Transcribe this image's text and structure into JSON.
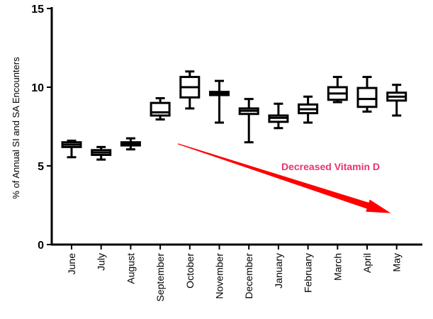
{
  "chart_data": {
    "type": "box",
    "title": "",
    "xlabel": "",
    "ylabel": "% of Annual SI and SA Encounters",
    "ylim": [
      0,
      15
    ],
    "yticks": [
      0,
      5,
      10,
      15
    ],
    "categories": [
      "June",
      "July",
      "August",
      "September",
      "October",
      "November",
      "December",
      "January",
      "February",
      "March",
      "April",
      "May"
    ],
    "boxes": [
      {
        "label": "June",
        "min": 5.55,
        "q1": 6.2,
        "median": 6.35,
        "q3": 6.5,
        "max": 6.6
      },
      {
        "label": "July",
        "min": 5.4,
        "q1": 5.7,
        "median": 5.85,
        "q3": 6.0,
        "max": 6.2
      },
      {
        "label": "August",
        "min": 6.05,
        "q1": 6.3,
        "median": 6.4,
        "q3": 6.5,
        "max": 6.75
      },
      {
        "label": "September",
        "min": 7.95,
        "q1": 8.2,
        "median": 8.4,
        "q3": 9.0,
        "max": 9.3
      },
      {
        "label": "October",
        "min": 8.65,
        "q1": 9.35,
        "median": 10.0,
        "q3": 10.65,
        "max": 11.0
      },
      {
        "label": "November",
        "min": 7.75,
        "q1": 9.5,
        "median": 9.6,
        "q3": 9.7,
        "max": 10.4
      },
      {
        "label": "December",
        "min": 6.5,
        "q1": 8.3,
        "median": 8.5,
        "q3": 8.65,
        "max": 9.25
      },
      {
        "label": "January",
        "min": 7.4,
        "q1": 7.8,
        "median": 8.05,
        "q3": 8.2,
        "max": 8.95
      },
      {
        "label": "February",
        "min": 7.75,
        "q1": 8.35,
        "median": 8.6,
        "q3": 8.9,
        "max": 9.4
      },
      {
        "label": "March",
        "min": 9.05,
        "q1": 9.2,
        "median": 9.6,
        "q3": 10.0,
        "max": 10.65
      },
      {
        "label": "April",
        "min": 8.45,
        "q1": 8.75,
        "median": 9.25,
        "q3": 9.95,
        "max": 10.65
      },
      {
        "label": "May",
        "min": 8.2,
        "q1": 9.15,
        "median": 9.4,
        "q3": 9.65,
        "max": 10.15
      }
    ],
    "annotation": {
      "text": "Decreased Vitamin D",
      "text_color": "#e8336e",
      "arrow_color": "#ff0000",
      "arrow_from": {
        "category": "September",
        "offset": 0.6,
        "y": 6.4
      },
      "arrow_to": {
        "category": "May",
        "offset": -0.2,
        "y": 2.0
      }
    }
  }
}
